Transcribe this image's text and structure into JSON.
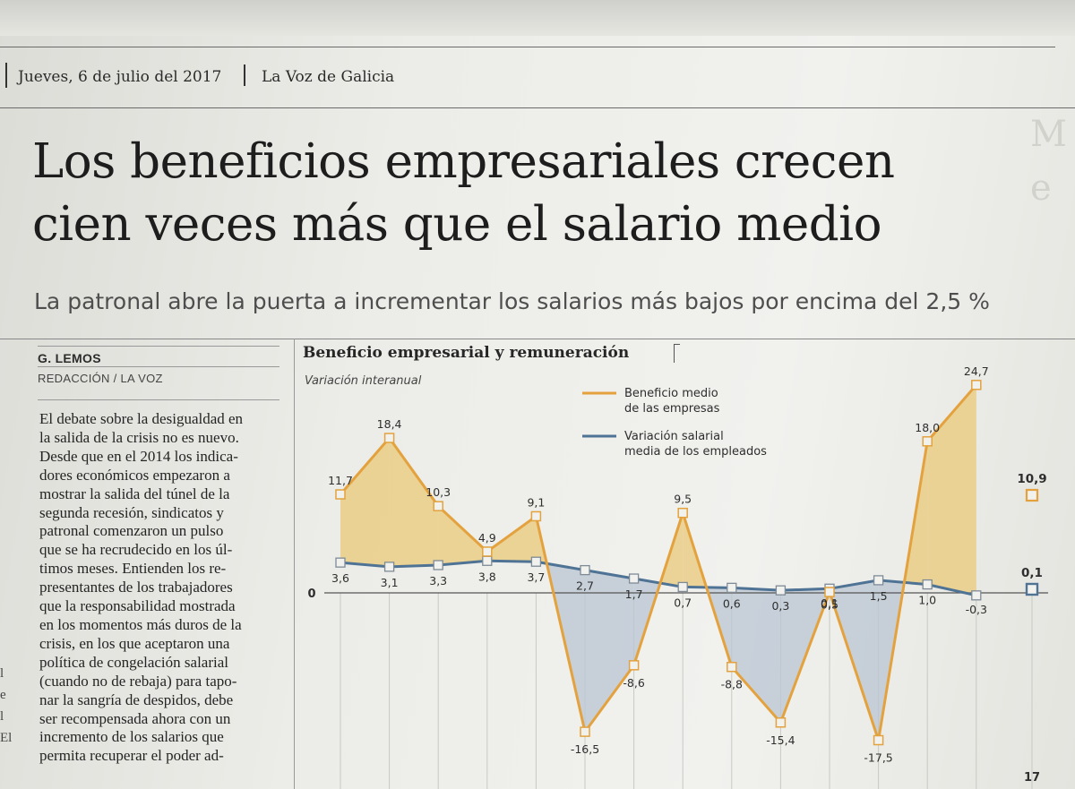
{
  "header": {
    "date": "Jueves, 6 de julio del 2017",
    "paper": "La Voz de Galicia"
  },
  "article": {
    "headline_line1": "Los beneficios empresariales crecen",
    "headline_line2": "cien veces más que el salario medio",
    "subhead": "La patronal abre la puerta a incrementar los salarios más bajos por encima del 2,5 %",
    "author": "G. LEMOS",
    "desk": "REDACCIÓN / LA VOZ",
    "body_lines": [
      "El debate sobre la desigualdad en",
      "la salida de la crisis no es nuevo.",
      "Desde que en el 2014 los indica-",
      "dores económicos empezaron a",
      "mostrar la salida del túnel de la",
      "segunda recesión, sindicatos y",
      "patronal comenzaron un pulso",
      "que se ha recrudecido en los úl-",
      "timos meses. Entienden los re-",
      "presentantes de los trabajadores",
      "que la responsabilidad mostrada",
      "en los momentos más duros de la",
      "crisis, en los que aceptaron una",
      "política de congelación salarial",
      "(cuando no de rebaja) para tapo-",
      "nar la sangría de despidos, debe",
      "ser recompensada ahora con un",
      "incremento de los salarios que",
      "permita recuperar el poder ad-"
    ],
    "margin_glyphs": [
      "l",
      "e",
      "l",
      "El"
    ]
  },
  "colors": {
    "beneficio": "#e3a23e",
    "beneficio_fill": "#e9c878",
    "salario": "#4f7394",
    "salario_fill": "#b9c6d3",
    "text": "#2a2a2a"
  },
  "chart_data": {
    "type": "line",
    "title": "Beneficio empresarial y remuneración",
    "subtitle": "Variación interanual",
    "zero_label": "0",
    "last_label": "17",
    "series": [
      {
        "name": "Beneficio medio de las empresas",
        "legend_lines": [
          "Beneficio medio",
          "de las empresas"
        ],
        "values": [
          11.7,
          18.4,
          10.3,
          4.9,
          9.1,
          -16.5,
          -8.6,
          9.5,
          -8.8,
          -15.4,
          0.1,
          -17.5,
          18.0,
          24.7
        ],
        "labels": [
          "11,7",
          "18,4",
          "10,3",
          "4,9",
          "9,1",
          "-16,5",
          "-8,6",
          "9,5",
          "-8,8",
          "-15,4",
          "0,1",
          "-17,5",
          "18,0",
          "24,7"
        ],
        "final_value": 10.9,
        "final_label": "10,9"
      },
      {
        "name": "Variación salarial media de los empleados",
        "legend_lines": [
          "Variación salarial",
          "media de los empleados"
        ],
        "values": [
          3.6,
          3.1,
          3.3,
          3.8,
          3.7,
          2.7,
          1.7,
          0.7,
          0.6,
          0.3,
          0.5,
          1.5,
          1.0,
          -0.3
        ],
        "labels": [
          "3,6",
          "3,1",
          "3,3",
          "3,8",
          "3,7",
          "2,7",
          "1,7",
          "0,7",
          "0,6",
          "0,3",
          "0,5",
          "1,5",
          "1,0",
          "-0,3"
        ],
        "final_value": 0.1,
        "final_label": "0,1"
      }
    ],
    "grid": true,
    "legend": "top-right"
  }
}
